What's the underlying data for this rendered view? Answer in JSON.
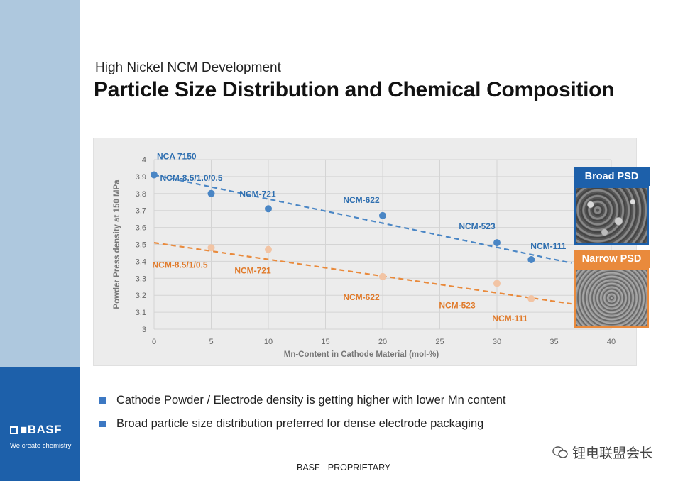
{
  "slide": {
    "subtitle": "High Nickel NCM Development",
    "title": "Particle Size Distribution and Chemical Composition",
    "footer": "BASF - PROPRIETARY",
    "logo": "BASF",
    "logo_tagline": "We create chemistry",
    "watermark": "锂电联盟会长"
  },
  "bullets": [
    "Cathode Powder / Electrode density is getting higher with lower Mn content",
    "Broad particle size distribution preferred for dense electrode packaging"
  ],
  "psd": {
    "broad_label": "Broad PSD",
    "narrow_label": "Narrow PSD"
  },
  "colors": {
    "blue": "#4a86c5",
    "orange": "#e98a3c",
    "sidebar": "#aec8de",
    "logo_bg": "#1d60aa"
  },
  "chart_data": {
    "type": "scatter",
    "xlabel": "Mn-Content in Cathode Material (mol-%)",
    "ylabel": "Powder Press density at 150 MPa",
    "xlim": [
      0,
      40
    ],
    "ylim": [
      3,
      4
    ],
    "xticks": [
      0,
      5,
      10,
      15,
      20,
      25,
      30,
      35,
      40
    ],
    "yticks": [
      3,
      3.1,
      3.2,
      3.3,
      3.4,
      3.5,
      3.6,
      3.7,
      3.8,
      3.9,
      4
    ],
    "grid": true,
    "series": [
      {
        "color": "#4a86c5",
        "points": [
          {
            "label": "NCA 7150",
            "x": 0,
            "y": 3.91
          },
          {
            "label": "NCM-8.5/1.0/0.5",
            "x": 5,
            "y": 3.8
          },
          {
            "label": "NCM-721",
            "x": 10,
            "y": 3.71
          },
          {
            "label": "NCM-622",
            "x": 20,
            "y": 3.67
          },
          {
            "label": "NCM-523",
            "x": 30,
            "y": 3.51
          },
          {
            "label": "NCM-111",
            "x": 33,
            "y": 3.41
          }
        ],
        "trend": [
          [
            0,
            3.91
          ],
          [
            36.5,
            3.39
          ]
        ]
      },
      {
        "color": "#e98a3c",
        "points": [
          {
            "label": "NCM-8.5/1/0.5",
            "x": 5,
            "y": 3.48
          },
          {
            "label": "NCM-721",
            "x": 10,
            "y": 3.47
          },
          {
            "label": "NCM-622",
            "x": 20,
            "y": 3.31
          },
          {
            "label": "NCM-523",
            "x": 30,
            "y": 3.27
          },
          {
            "label": "NCM-111",
            "x": 33,
            "y": 3.18
          }
        ],
        "trend": [
          [
            0,
            3.51
          ],
          [
            36.5,
            3.15
          ]
        ]
      }
    ]
  }
}
